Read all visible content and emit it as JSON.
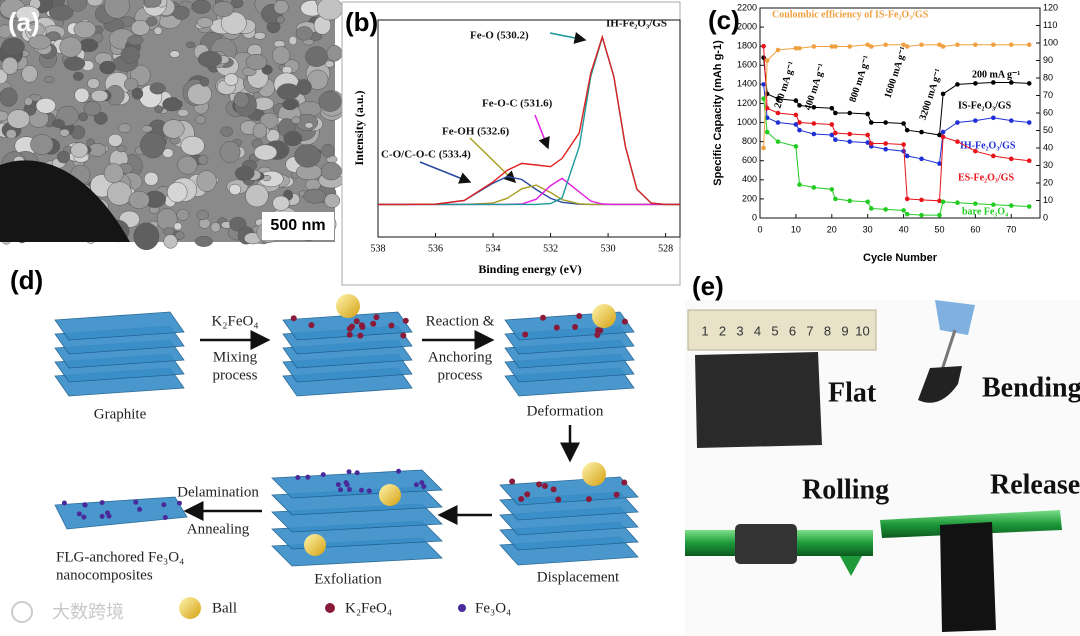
{
  "panels": {
    "a": {
      "label": "(a)",
      "scale_bar": "500 nm"
    },
    "d": {
      "label": "(d)",
      "start": "Graphite",
      "reagent": "K₂FeO₄",
      "mixing": [
        "Mixing",
        "process"
      ],
      "reaction": [
        "Reaction &",
        "Anchoring",
        "process"
      ],
      "deformation": "Deformation",
      "displacement": "Displacement",
      "exfoliation": "Exfoliation",
      "delamination": "Delamination",
      "annealing": "Annealing",
      "product": [
        "FLG-anchored Fe₃O₄",
        "nanocomposites"
      ],
      "legend": [
        "Ball",
        "K₂FeO₄",
        "Fe₃O₄"
      ]
    },
    "e": {
      "label": "(e)",
      "ruler": [
        1,
        2,
        3,
        4,
        5,
        6,
        7,
        8,
        9,
        10
      ],
      "flat": "Flat",
      "bending": "Bending",
      "rolling": "Rolling",
      "release": "Release"
    }
  },
  "watermark": "大数跨境",
  "chart_data": [
    {
      "type": "line",
      "panel_label": "(b)",
      "x_label": "Binding energy (eV)",
      "y_label": "Intensity (a.u.)",
      "x": [
        538,
        537,
        536,
        535,
        534,
        533.5,
        533,
        532.5,
        532,
        531.6,
        531,
        530.6,
        530.2,
        529.8,
        529.4,
        529,
        528.5,
        528,
        527.5
      ],
      "xlim": [
        538,
        527.5
      ],
      "ylim": [
        0,
        100
      ],
      "xticks": [
        538,
        536,
        534,
        532,
        530,
        528
      ],
      "series": [
        {
          "color": "#2a4aa0",
          "values": [
            15,
            15,
            15.1,
            16.8,
            24.8,
            27.9,
            26.5,
            21.9,
            17.8,
            16,
            15.1,
            15,
            15,
            15,
            15,
            15,
            15,
            15,
            15
          ]
        },
        {
          "color": "#a8a020",
          "values": [
            15,
            15,
            15,
            15,
            15.6,
            17.9,
            22.2,
            23.9,
            20.5,
            17.2,
            15.3,
            15,
            15,
            15,
            15,
            15,
            15,
            15,
            15
          ]
        },
        {
          "color": "#e020e0",
          "values": [
            15,
            15,
            15,
            15,
            15,
            15,
            15.2,
            17.4,
            23.7,
            27,
            20.8,
            16.6,
            15.2,
            15,
            15,
            15,
            15,
            15,
            15
          ]
        },
        {
          "color": "#1a9a9a",
          "values": [
            15,
            15,
            15,
            15,
            15,
            15,
            15,
            15,
            15.4,
            18,
            41.7,
            74,
            92,
            74,
            41.7,
            22,
            15.6,
            15,
            15
          ]
        },
        {
          "color": "#e02020",
          "values": [
            15,
            15,
            15.1,
            16.8,
            25.4,
            30.8,
            33.9,
            33.2,
            32.4,
            36.2,
            48,
            75.6,
            92.2,
            74,
            41.7,
            22,
            15.6,
            15,
            15
          ]
        }
      ],
      "annotations": [
        {
          "text": "IH-Fe₂O₃/GS",
          "color": "#111"
        },
        {
          "text": "Fe-O (530.2)",
          "color": "#111"
        },
        {
          "text": "Fe-O-C (531.6)",
          "color": "#111"
        },
        {
          "text": "Fe-OH (532.6)",
          "color": "#111"
        },
        {
          "text": "C-O/C-O-C (533.4)",
          "color": "#111"
        }
      ]
    },
    {
      "type": "line",
      "panel_label": "(c)",
      "x_label": "Cycle Number",
      "y_label": "Specific Capacity (mAh g-1)",
      "x": [
        1,
        2,
        5,
        10,
        11,
        15,
        20,
        21,
        25,
        30,
        31,
        35,
        40,
        41,
        45,
        50,
        51,
        55,
        60,
        65,
        70,
        75
      ],
      "xlim": [
        0,
        78
      ],
      "ylim": [
        0,
        2200
      ],
      "y2lim": [
        0,
        120
      ],
      "xticks": [
        0,
        10,
        20,
        30,
        40,
        50,
        60,
        70
      ],
      "yticks": [
        0,
        200,
        400,
        600,
        800,
        1000,
        1200,
        1400,
        1600,
        1800,
        2000,
        2200
      ],
      "y2ticks": [
        0,
        10,
        20,
        30,
        40,
        50,
        60,
        70,
        80,
        90,
        100,
        110,
        120
      ],
      "rates": [
        "200 mA g⁻¹",
        "400 mA g⁻¹",
        "800 mA g⁻¹",
        "1600 mA g⁻¹",
        "3200 mA g⁻¹",
        "200 mA g⁻¹"
      ],
      "series": [
        {
          "name": "IS-Fe₂O₃/GS",
          "color": "#000000",
          "values": [
            1680,
            1300,
            1250,
            1230,
            1180,
            1160,
            1150,
            1100,
            1100,
            1090,
            1000,
            1000,
            990,
            920,
            900,
            870,
            1300,
            1400,
            1410,
            1420,
            1420,
            1410
          ]
        },
        {
          "name": "IH-Fe₂O₃/GS",
          "color": "#1f2fd6",
          "values": [
            1400,
            1050,
            1000,
            980,
            920,
            880,
            870,
            820,
            800,
            790,
            750,
            720,
            700,
            650,
            620,
            570,
            900,
            1000,
            1020,
            1050,
            1020,
            1000
          ]
        },
        {
          "name": "ES-Fe₂O₃/GS",
          "color": "#e8141a",
          "values": [
            1800,
            1150,
            1100,
            1080,
            1000,
            990,
            980,
            890,
            880,
            870,
            780,
            780,
            770,
            200,
            190,
            180,
            850,
            800,
            700,
            650,
            620,
            600
          ]
        },
        {
          "name": "bare Fe₃O₄",
          "color": "#22cc22",
          "values": [
            1250,
            900,
            800,
            750,
            350,
            320,
            300,
            200,
            180,
            170,
            100,
            90,
            80,
            40,
            30,
            30,
            170,
            160,
            150,
            140,
            130,
            120
          ]
        },
        {
          "name": "Coulombic efficiency of IS-Fe₂O₃/GS",
          "color": "#f0a040",
          "axis": "y2",
          "values": [
            40,
            90,
            96,
            97,
            97,
            98,
            98,
            98,
            98,
            99,
            98,
            99,
            99,
            98,
            99,
            99,
            98,
            99,
            99,
            99,
            99,
            99
          ]
        }
      ]
    }
  ]
}
